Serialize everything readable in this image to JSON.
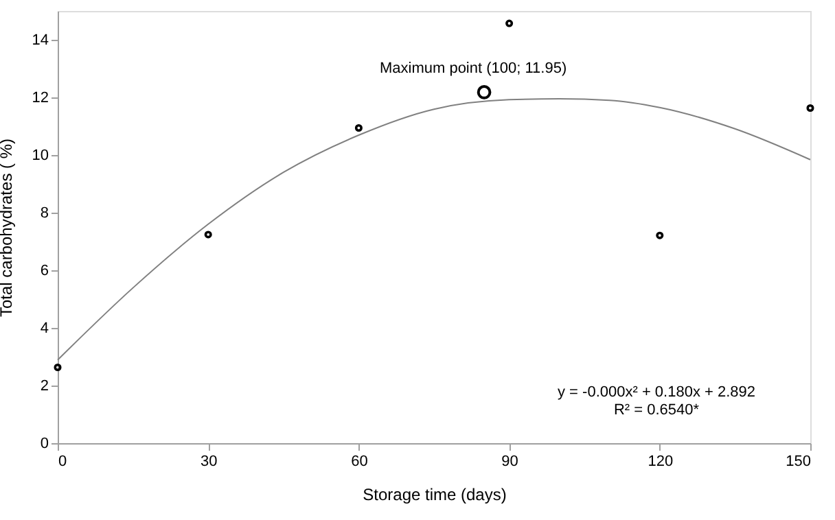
{
  "chart_data": {
    "type": "scatter",
    "xlabel": "Storage time (days)",
    "ylabel": "Total carbohydrates ( %)",
    "xlim": [
      0,
      150
    ],
    "xticks": [
      0,
      30,
      60,
      90,
      120,
      150
    ],
    "ylim": [
      0,
      15
    ],
    "yticks": [
      0,
      2,
      4,
      6,
      8,
      10,
      12,
      14
    ],
    "grid": false,
    "marker": "circle",
    "series": [
      {
        "type": "line",
        "color": "#808080",
        "marker": "none",
        "x": [
          0,
          15,
          30,
          45,
          60,
          75,
          90,
          100,
          110,
          120,
          135,
          150
        ],
        "values": [
          2.89,
          5.39,
          7.6,
          9.4,
          10.69,
          11.59,
          11.92,
          11.95,
          11.9,
          11.65,
          10.91,
          9.84
        ]
      },
      {
        "color": "#000000",
        "x": [
          0,
          30,
          60,
          90,
          120,
          150
        ],
        "values": [
          2.63,
          7.24,
          10.94,
          14.57,
          7.21,
          11.63
        ]
      }
    ],
    "annotations": [
      {
        "text": "Maximum point (100; 11.95)",
        "x": 85,
        "y": 12.18
      },
      "y = -0.000x² + 0.180x + 2.892",
      "R² = 0.6540*"
    ]
  }
}
